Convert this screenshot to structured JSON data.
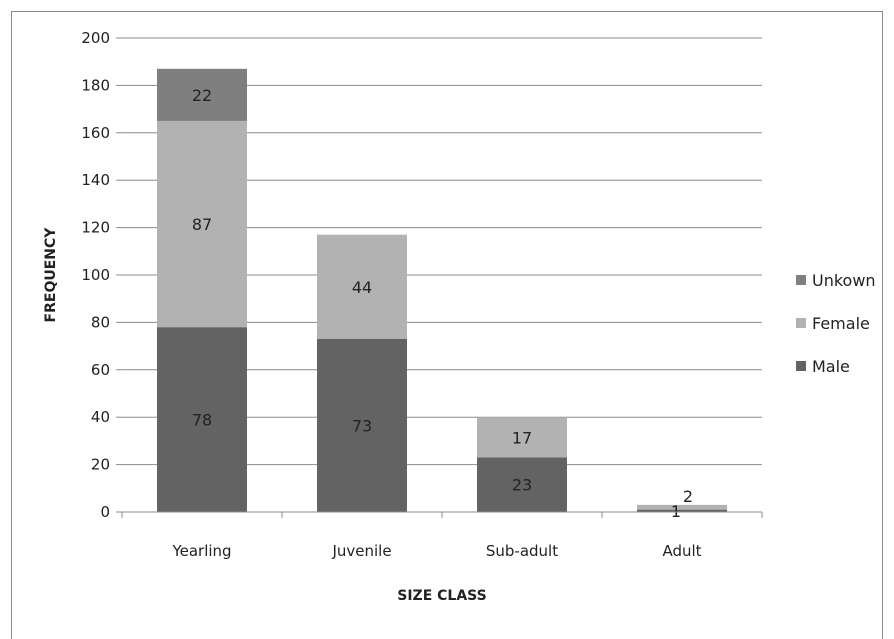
{
  "chart_data": {
    "type": "bar",
    "stacked": true,
    "categories": [
      "Yearling",
      "Juvenile",
      "Sub-adult",
      "Adult"
    ],
    "series": [
      {
        "name": "Male",
        "values": [
          78,
          73,
          23,
          1
        ],
        "color": "#636363"
      },
      {
        "name": "Female",
        "values": [
          87,
          44,
          17,
          2
        ],
        "color": "#b2b2b2"
      },
      {
        "name": "Unkown",
        "values": [
          22,
          0,
          0,
          0
        ],
        "color": "#7f7f7f"
      }
    ],
    "data_labels": [
      [
        "78",
        "87",
        "22"
      ],
      [
        "73",
        "44",
        ""
      ],
      [
        "23",
        "17",
        ""
      ],
      [
        "1",
        "2",
        ""
      ]
    ],
    "xlabel": "SIZE CLASS",
    "ylabel": "FREQUENCY",
    "ylim": [
      0,
      200
    ],
    "yticks": [
      0,
      20,
      40,
      60,
      80,
      100,
      120,
      140,
      160,
      180,
      200
    ],
    "grid": true,
    "legend": {
      "placement": "right",
      "order": [
        "Unkown",
        "Female",
        "Male"
      ]
    }
  }
}
